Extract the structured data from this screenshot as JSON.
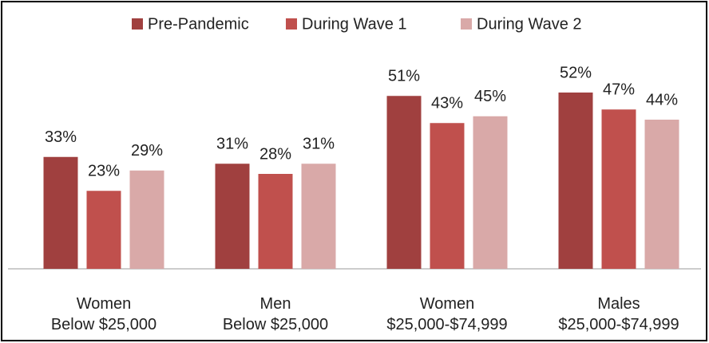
{
  "chart_data": {
    "type": "bar",
    "categories": [
      "Women\nBelow $25,000",
      "Men\nBelow $25,000",
      "Women\n$25,000-$74,999",
      "Males\n$25,000-$74,999"
    ],
    "series": [
      {
        "name": "Pre-Pandemic",
        "color": "#a0403f",
        "values": [
          33,
          31,
          51,
          52
        ],
        "value_labels": [
          "33%",
          "31%",
          "51%",
          "52%"
        ]
      },
      {
        "name": "During Wave 1",
        "color": "#c0504d",
        "values": [
          23,
          28,
          43,
          47
        ],
        "value_labels": [
          "23%",
          "28%",
          "43%",
          "47%"
        ]
      },
      {
        "name": "During Wave 2",
        "color": "#d9a9a8",
        "values": [
          29,
          31,
          45,
          44
        ],
        "value_labels": [
          "29%",
          "31%",
          "45%",
          "44%"
        ]
      }
    ],
    "ylim": [
      0,
      60
    ],
    "legend": "top"
  }
}
